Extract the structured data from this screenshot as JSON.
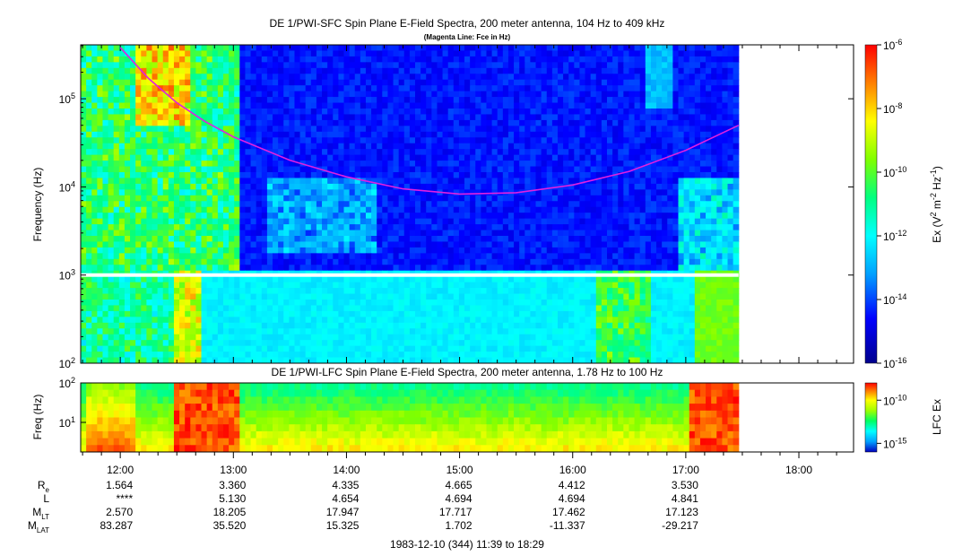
{
  "chart_data": [
    {
      "type": "heatmap",
      "title": "DE 1/PWI-SFC  Spin Plane E-Field Spectra, 200 meter antenna, 104 Hz to 409 kHz",
      "subtitle": "(Magenta Line: Fce in Hz)",
      "ylabel": "Frequency (Hz)",
      "yscale": "log",
      "ylim": [
        100,
        409000
      ],
      "yticks": [
        {
          "value": 100,
          "label": "10",
          "sup": "2"
        },
        {
          "value": 1000,
          "label": "10",
          "sup": "3"
        },
        {
          "value": 10000,
          "label": "10",
          "sup": "4"
        },
        {
          "value": 100000,
          "label": "10",
          "sup": "5"
        }
      ],
      "colorbar": {
        "label_parts": [
          "Ex (V",
          "2",
          " m",
          "-2",
          " Hz",
          "-1",
          ")"
        ],
        "scale": "log",
        "range": [
          1e-16,
          1e-06
        ],
        "ticks": [
          {
            "value": 1e-06,
            "label": "10",
            "sup": "-6"
          },
          {
            "value": 1e-08,
            "label": "10",
            "sup": "-8"
          },
          {
            "value": 1e-10,
            "label": "10",
            "sup": "-10"
          },
          {
            "value": 1e-12,
            "label": "10",
            "sup": "-12"
          },
          {
            "value": 1e-14,
            "label": "10",
            "sup": "-14"
          },
          {
            "value": 1e-16,
            "label": "10",
            "sup": "-16"
          }
        ]
      },
      "data_end_time": "17:28",
      "series": [
        {
          "name": "Fce",
          "color": "#e020e0",
          "points": [
            [
              "12:00",
              380000
            ],
            [
              "12:15",
              170000
            ],
            [
              "12:30",
              90000
            ],
            [
              "12:45",
              55000
            ],
            [
              "13:00",
              37000
            ],
            [
              "13:30",
              20000
            ],
            [
              "14:00",
              13000
            ],
            [
              "14:30",
              9500
            ],
            [
              "15:00",
              8300
            ],
            [
              "15:30",
              8600
            ],
            [
              "16:00",
              10500
            ],
            [
              "16:30",
              15000
            ],
            [
              "17:00",
              26000
            ],
            [
              "17:28",
              50000
            ]
          ]
        }
      ],
      "colors": [
        "#00008c",
        "#0000ff",
        "#00a0ff",
        "#00ffff",
        "#00ff80",
        "#80ff00",
        "#ffff00",
        "#ff8000",
        "#ff0000"
      ]
    },
    {
      "type": "heatmap",
      "title": "DE 1/PWI-LFC  Spin Plane E-Field Spectra, 200 meter antenna, 1.78 Hz to 100 Hz",
      "ylabel": "Freq (Hz)",
      "yscale": "log",
      "ylim": [
        1.78,
        100
      ],
      "yticks": [
        {
          "value": 10,
          "label": "10",
          "sup": "1"
        },
        {
          "value": 100,
          "label": "10",
          "sup": "2"
        }
      ],
      "colorbar": {
        "label": "LFC Ex",
        "scale": "log",
        "range": [
          1e-16,
          1e-08
        ],
        "ticks": [
          {
            "value": 1e-10,
            "label": "10",
            "sup": "-10"
          },
          {
            "value": 1e-15,
            "label": "10",
            "sup": "-15"
          }
        ]
      },
      "data_end_time": "17:28"
    }
  ],
  "time_axis": {
    "start": "11:39",
    "end": "18:29",
    "ticks": [
      "12:00",
      "13:00",
      "14:00",
      "15:00",
      "16:00",
      "17:00",
      "18:00"
    ]
  },
  "ephemeris": {
    "rows": [
      {
        "label": "R",
        "sub": "e",
        "values": [
          "1.564",
          "3.360",
          "4.335",
          "4.665",
          "4.412",
          "3.530"
        ]
      },
      {
        "label": "L",
        "sub": "",
        "values": [
          "****",
          "5.130",
          "4.654",
          "4.694",
          "4.694",
          "4.841"
        ]
      },
      {
        "label": "M",
        "sub": "LT",
        "values": [
          "2.570",
          "18.205",
          "17.947",
          "17.717",
          "17.462",
          "17.123"
        ]
      },
      {
        "label": "M",
        "sub": "LAT",
        "values": [
          "83.287",
          "35.520",
          "15.325",
          "1.702",
          "-11.337",
          "-29.217"
        ]
      }
    ]
  },
  "footer": "1983-12-10 (344) 11:39 to 18:29"
}
